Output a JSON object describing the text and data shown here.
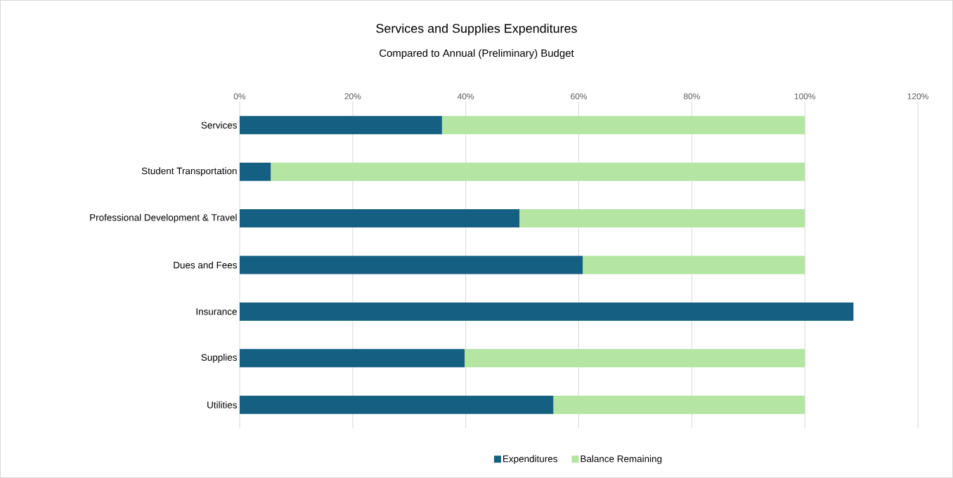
{
  "chart_data": {
    "type": "bar",
    "orientation": "horizontal",
    "stacked": true,
    "title": "Services and Supplies Expenditures",
    "subtitle": "Compared to Annual (Preliminary) Budget",
    "categories": [
      "Services",
      "Student Transportation",
      "Professional Development & Travel",
      "Dues and Fees",
      "Insurance",
      "Supplies",
      "Utilities"
    ],
    "series": [
      {
        "name": "Expenditures",
        "color": "#156082",
        "values": [
          35.8,
          5.5,
          49.5,
          60.7,
          108.6,
          39.8,
          55.5
        ]
      },
      {
        "name": "Balance Remaining",
        "color": "#b4e5a2",
        "values": [
          64.2,
          94.5,
          50.5,
          39.3,
          0,
          60.2,
          44.5
        ]
      }
    ],
    "xlim": [
      0,
      120
    ],
    "xticks": [
      {
        "value": 0,
        "label": "0%"
      },
      {
        "value": 20,
        "label": "20%"
      },
      {
        "value": 40,
        "label": "40%"
      },
      {
        "value": 60,
        "label": "60%"
      },
      {
        "value": 80,
        "label": "80%"
      },
      {
        "value": 100,
        "label": "100%"
      },
      {
        "value": 120,
        "label": "120%"
      }
    ],
    "grid": "x",
    "legend": "bottom"
  }
}
